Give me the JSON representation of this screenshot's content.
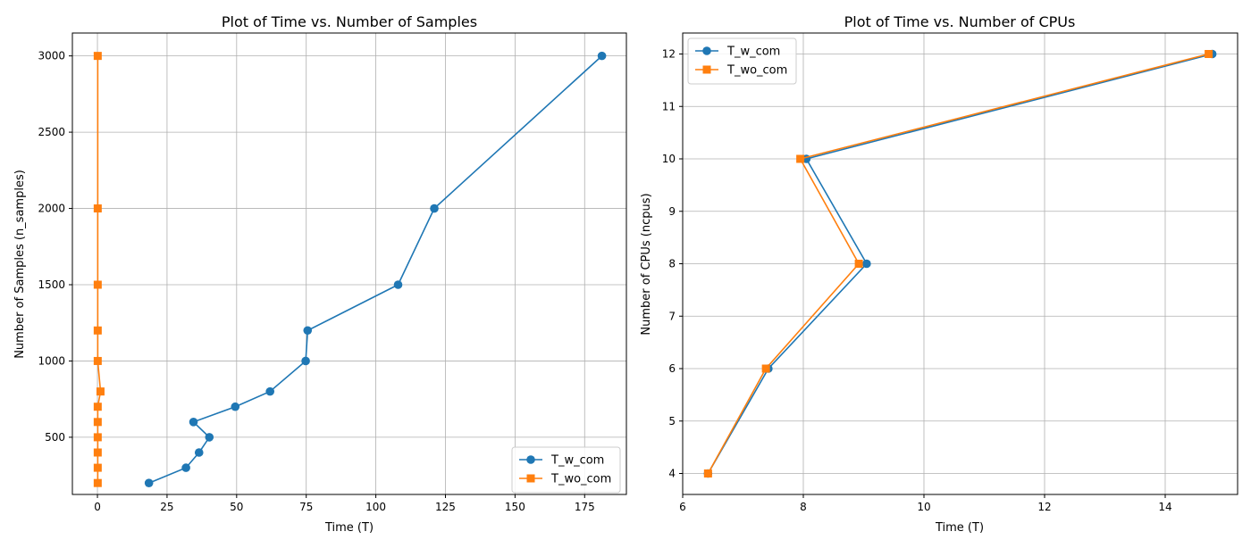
{
  "chart_data": [
    {
      "type": "line",
      "title": "Plot of Time vs. Number of Samples",
      "xlabel": "Time (T)",
      "ylabel": "Number of Samples (n_samples)",
      "xlim": [
        -9,
        190
      ],
      "ylim": [
        125,
        3150
      ],
      "xticks": [
        0,
        25,
        50,
        75,
        100,
        125,
        150,
        175
      ],
      "yticks": [
        500,
        1000,
        1500,
        2000,
        2500,
        3000
      ],
      "grid": true,
      "legend_position": "lower-right",
      "series": [
        {
          "name": "T_w_com",
          "color": "#1f77b4",
          "marker": "circle",
          "x": [
            18.5,
            31.8,
            36.5,
            40.2,
            34.5,
            49.5,
            62,
            74.8,
            75.5,
            108,
            121,
            181.2
          ],
          "y": [
            200,
            300,
            400,
            500,
            600,
            700,
            800,
            1000,
            1200,
            1500,
            2000,
            3000
          ]
        },
        {
          "name": "T_wo_com",
          "color": "#ff7f0e",
          "marker": "square",
          "x": [
            0.1,
            0.1,
            0.1,
            0.1,
            0.1,
            0.1,
            1.1,
            0.1,
            0.1,
            0.1,
            0.1,
            0.1
          ],
          "y": [
            200,
            300,
            400,
            500,
            600,
            700,
            800,
            1000,
            1200,
            1500,
            2000,
            3000
          ]
        }
      ]
    },
    {
      "type": "line",
      "title": "Plot of Time vs. Number of CPUs",
      "xlabel": "Time (T)",
      "ylabel": "Number of CPUs (ncpus)",
      "xlim": [
        6,
        15.2
      ],
      "ylim": [
        3.6,
        12.4
      ],
      "xticks": [
        6,
        8,
        10,
        12,
        14
      ],
      "yticks": [
        4,
        5,
        6,
        7,
        8,
        9,
        10,
        11,
        12
      ],
      "grid": true,
      "legend_position": "upper-left",
      "series": [
        {
          "name": "T_w_com",
          "color": "#1f77b4",
          "marker": "circle",
          "x": [
            6.42,
            7.42,
            9.05,
            8.05,
            14.78
          ],
          "y": [
            4,
            6,
            8,
            10,
            12
          ]
        },
        {
          "name": "T_wo_com",
          "color": "#ff7f0e",
          "marker": "square",
          "x": [
            6.42,
            7.38,
            8.92,
            7.95,
            14.72
          ],
          "y": [
            4,
            6,
            8,
            10,
            12
          ]
        }
      ]
    }
  ]
}
